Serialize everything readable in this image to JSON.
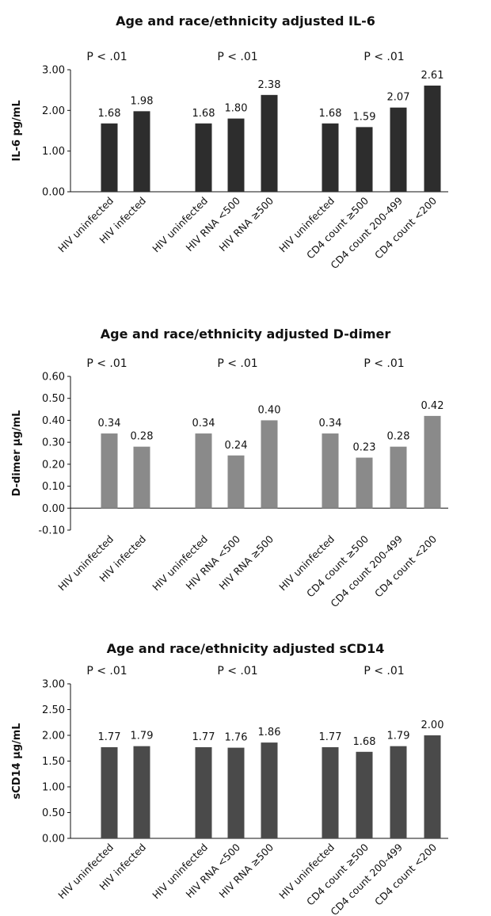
{
  "chart_data": [
    {
      "type": "bar",
      "title": "Age and race/ethnicity adjusted IL-6",
      "ylabel": "IL-6 pg/mL",
      "ylim": [
        0,
        3
      ],
      "yticks": [
        "0.00",
        "1.00",
        "2.00",
        "3.00"
      ],
      "bar_color": "#2d2d2d",
      "groups": [
        {
          "p": "P < .01",
          "categories": [
            "HIV uninfected",
            "HIV infected"
          ],
          "values": [
            1.68,
            1.98
          ],
          "labels": [
            "1.68",
            "1.98"
          ]
        },
        {
          "p": "P < .01",
          "categories": [
            "HIV uninfected",
            "HIV RNA <500",
            "HIV RNA ≥500"
          ],
          "values": [
            1.68,
            1.8,
            2.38
          ],
          "labels": [
            "1.68",
            "1.80",
            "2.38"
          ]
        },
        {
          "p": "P < .01",
          "categories": [
            "HIV uninfected",
            "CD4 count ≥500",
            "CD4 count 200-499",
            "CD4 count <200"
          ],
          "values": [
            1.68,
            1.59,
            2.07,
            2.61
          ],
          "labels": [
            "1.68",
            "1.59",
            "2.07",
            "2.61"
          ]
        }
      ]
    },
    {
      "type": "bar",
      "title": "Age and race/ethnicity adjusted D-dimer",
      "ylabel": "D-dimer µg/mL",
      "ylim": [
        -0.1,
        0.6
      ],
      "yticks": [
        "-0.10",
        "0.00",
        "0.10",
        "0.20",
        "0.30",
        "0.40",
        "0.50",
        "0.60"
      ],
      "bar_color": "#8a8a8a",
      "groups": [
        {
          "p": "P < .01",
          "categories": [
            "HIV uninfected",
            "HIV infected"
          ],
          "values": [
            0.34,
            0.28
          ],
          "labels": [
            "0.34",
            "0.28"
          ]
        },
        {
          "p": "P < .01",
          "categories": [
            "HIV uninfected",
            "HIV RNA <500",
            "HIV RNA ≥500"
          ],
          "values": [
            0.34,
            0.24,
            0.4
          ],
          "labels": [
            "0.34",
            "0.24",
            "0.40"
          ]
        },
        {
          "p": "P < .01",
          "categories": [
            "HIV uninfected",
            "CD4 count ≥500",
            "CD4 count 200-499",
            "CD4 count <200"
          ],
          "values": [
            0.34,
            0.23,
            0.28,
            0.42
          ],
          "labels": [
            "0.34",
            "0.23",
            "0.28",
            "0.42"
          ]
        }
      ]
    },
    {
      "type": "bar",
      "title": "Age and race/ethnicity adjusted sCD14",
      "ylabel": "sCD14 µg/mL",
      "ylim": [
        0,
        3
      ],
      "yticks": [
        "0.00",
        "0.50",
        "1.00",
        "1.50",
        "2.00",
        "2.50",
        "3.00"
      ],
      "bar_color": "#4a4a4a",
      "groups": [
        {
          "p": "P < .01",
          "categories": [
            "HIV uninfected",
            "HIV infected"
          ],
          "values": [
            1.77,
            1.79
          ],
          "labels": [
            "1.77",
            "1.79"
          ]
        },
        {
          "p": "P < .01",
          "categories": [
            "HIV uninfected",
            "HIV RNA <500",
            "HIV RNA ≥500"
          ],
          "values": [
            1.77,
            1.76,
            1.86
          ],
          "labels": [
            "1.77",
            "1.76",
            "1.86"
          ]
        },
        {
          "p": "P < .01",
          "categories": [
            "HIV uninfected",
            "CD4 count ≥500",
            "CD4 count 200-499",
            "CD4 count <200"
          ],
          "values": [
            1.77,
            1.68,
            1.79,
            2.0
          ],
          "labels": [
            "1.77",
            "1.68",
            "1.79",
            "2.00"
          ]
        }
      ]
    }
  ]
}
